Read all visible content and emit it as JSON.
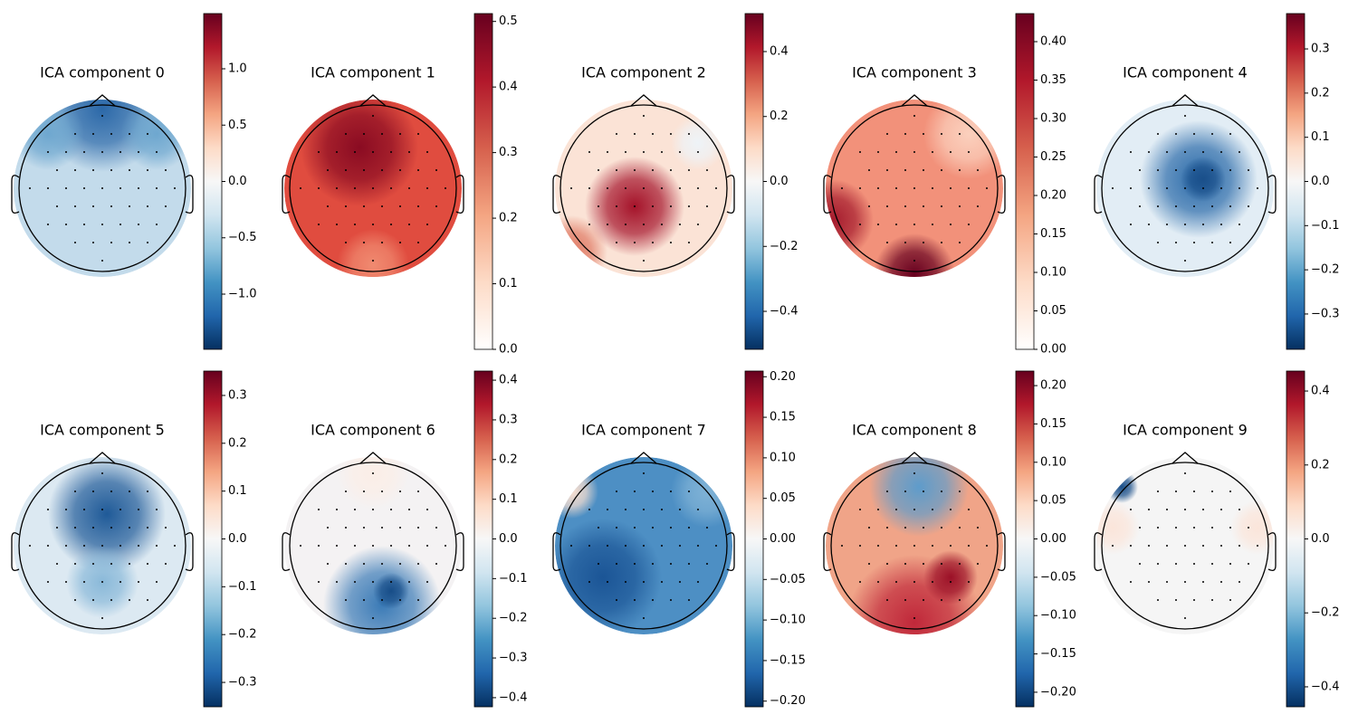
{
  "chart_data": [
    {
      "type": "topomap",
      "title": "ICA component 0",
      "ylim": [
        -1.49,
        1.49
      ],
      "yticks": [
        {
          "value": -1,
          "label": "−1.0"
        },
        {
          "value": -0.5,
          "label": "−0.5"
        },
        {
          "value": 0,
          "label": "0.0"
        },
        0.5,
        {
          "value": 1,
          "label": "1.0"
        }
      ],
      "colorscale": [
        "#053061",
        "#2166ac",
        "#4393c3",
        "#92c5de",
        "#d1e5f0",
        "#f7f7f7",
        "#fddbc7",
        "#f4a582",
        "#d6604d",
        "#b2182b",
        "#67001f"
      ]
    },
    {
      "type": "topomap",
      "title": "ICA component 1",
      "ylim": [
        0,
        0.512
      ],
      "yticks": [
        {
          "value": 0,
          "label": "0.0"
        },
        0.1,
        0.2,
        0.3,
        0.4,
        0.5
      ],
      "colorscale": [
        "#ffffff",
        "#fddbc7",
        "#f4a582",
        "#d6604d",
        "#b2182b",
        "#67001f"
      ]
    },
    {
      "type": "topomap",
      "title": "ICA component 2",
      "ylim": [
        -0.517,
        0.517
      ],
      "yticks": [
        {
          "value": -0.4,
          "label": "−0.4"
        },
        {
          "value": -0.2,
          "label": "−0.2"
        },
        {
          "value": 0,
          "label": "0.0"
        },
        0.2,
        0.4
      ],
      "colorscale": [
        "#053061",
        "#2166ac",
        "#4393c3",
        "#92c5de",
        "#d1e5f0",
        "#f7f7f7",
        "#fddbc7",
        "#f4a582",
        "#d6604d",
        "#b2182b",
        "#67001f"
      ]
    },
    {
      "type": "topomap",
      "title": "ICA component 3",
      "ylim": [
        0,
        0.4365
      ],
      "yticks": [
        {
          "value": 0,
          "label": "0.00"
        },
        0.05,
        {
          "value": 0.1,
          "label": "0.10"
        },
        0.15,
        {
          "value": 0.2,
          "label": "0.20"
        },
        0.25,
        {
          "value": 0.3,
          "label": "0.30"
        },
        0.35,
        {
          "value": 0.4,
          "label": "0.40"
        }
      ],
      "colorscale": [
        "#ffffff",
        "#fddbc7",
        "#f4a582",
        "#d6604d",
        "#b2182b",
        "#67001f"
      ]
    },
    {
      "type": "topomap",
      "title": "ICA component 4",
      "ylim": [
        -0.38,
        0.38
      ],
      "yticks": [
        {
          "value": -0.3,
          "label": "−0.3"
        },
        {
          "value": -0.2,
          "label": "−0.2"
        },
        {
          "value": -0.1,
          "label": "−0.1"
        },
        {
          "value": 0,
          "label": "0.0"
        },
        0.1,
        0.2,
        0.3
      ],
      "colorscale": [
        "#053061",
        "#2166ac",
        "#4393c3",
        "#92c5de",
        "#d1e5f0",
        "#f7f7f7",
        "#fddbc7",
        "#f4a582",
        "#d6604d",
        "#b2182b",
        "#67001f"
      ]
    },
    {
      "type": "topomap",
      "title": "ICA component 5",
      "ylim": [
        -0.351,
        0.351
      ],
      "yticks": [
        {
          "value": -0.3,
          "label": "−0.3"
        },
        {
          "value": -0.2,
          "label": "−0.2"
        },
        {
          "value": -0.1,
          "label": "−0.1"
        },
        {
          "value": 0,
          "label": "0.0"
        },
        0.1,
        0.2,
        0.3
      ],
      "colorscale": [
        "#053061",
        "#2166ac",
        "#4393c3",
        "#92c5de",
        "#d1e5f0",
        "#f7f7f7",
        "#fddbc7",
        "#f4a582",
        "#d6604d",
        "#b2182b",
        "#67001f"
      ]
    },
    {
      "type": "topomap",
      "title": "ICA component 6",
      "ylim": [
        -0.423,
        0.423
      ],
      "yticks": [
        {
          "value": -0.4,
          "label": "−0.4"
        },
        {
          "value": -0.3,
          "label": "−0.3"
        },
        {
          "value": -0.2,
          "label": "−0.2"
        },
        {
          "value": -0.1,
          "label": "−0.1"
        },
        {
          "value": 0,
          "label": "0.0"
        },
        0.1,
        0.2,
        0.3,
        0.4
      ],
      "colorscale": [
        "#053061",
        "#2166ac",
        "#4393c3",
        "#92c5de",
        "#d1e5f0",
        "#f7f7f7",
        "#fddbc7",
        "#f4a582",
        "#d6604d",
        "#b2182b",
        "#67001f"
      ]
    },
    {
      "type": "topomap",
      "title": "ICA component 7",
      "ylim": [
        -0.207,
        0.207
      ],
      "yticks": [
        {
          "value": -0.2,
          "label": "−0.20"
        },
        {
          "value": -0.15,
          "label": "−0.15"
        },
        {
          "value": -0.1,
          "label": "−0.10"
        },
        {
          "value": -0.05,
          "label": "−0.05"
        },
        {
          "value": 0,
          "label": "0.00"
        },
        0.05,
        {
          "value": 0.1,
          "label": "0.10"
        },
        0.15,
        {
          "value": 0.2,
          "label": "0.20"
        }
      ],
      "colorscale": [
        "#053061",
        "#2166ac",
        "#4393c3",
        "#92c5de",
        "#d1e5f0",
        "#f7f7f7",
        "#fddbc7",
        "#f4a582",
        "#d6604d",
        "#b2182b",
        "#67001f"
      ]
    },
    {
      "type": "topomap",
      "title": "ICA component 8",
      "ylim": [
        -0.219,
        0.219
      ],
      "yticks": [
        {
          "value": -0.2,
          "label": "−0.20"
        },
        {
          "value": -0.15,
          "label": "−0.15"
        },
        {
          "value": -0.1,
          "label": "−0.10"
        },
        {
          "value": -0.05,
          "label": "−0.05"
        },
        {
          "value": 0,
          "label": "0.00"
        },
        0.05,
        {
          "value": 0.1,
          "label": "0.10"
        },
        0.15,
        {
          "value": 0.2,
          "label": "0.20"
        }
      ],
      "colorscale": [
        "#053061",
        "#2166ac",
        "#4393c3",
        "#92c5de",
        "#d1e5f0",
        "#f7f7f7",
        "#fddbc7",
        "#f4a582",
        "#d6604d",
        "#b2182b",
        "#67001f"
      ]
    },
    {
      "type": "topomap",
      "title": "ICA component 9",
      "ylim": [
        -0.454,
        0.454
      ],
      "yticks": [
        {
          "value": -0.4,
          "label": "−0.4"
        },
        {
          "value": -0.2,
          "label": "−0.2"
        },
        {
          "value": 0,
          "label": "0.0"
        },
        0.2,
        0.4
      ],
      "colorscale": [
        "#053061",
        "#2166ac",
        "#4393c3",
        "#92c5de",
        "#d1e5f0",
        "#f7f7f7",
        "#fddbc7",
        "#f4a582",
        "#d6604d",
        "#b2182b",
        "#67001f"
      ]
    }
  ]
}
